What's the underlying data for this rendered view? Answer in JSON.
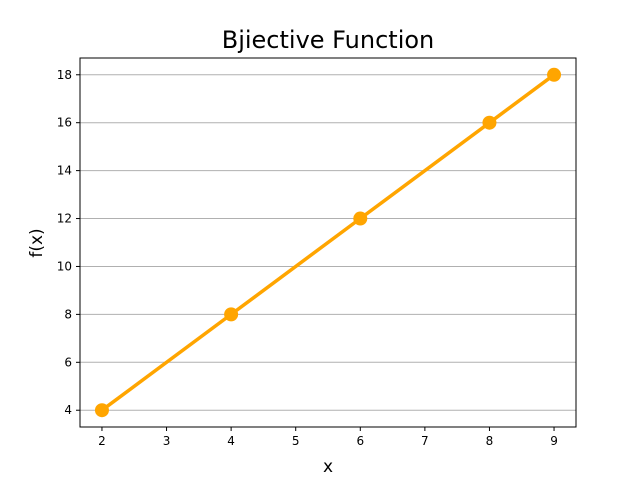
{
  "chart_data": {
    "type": "line",
    "title": "Bjiective Function",
    "xlabel": "x",
    "ylabel": "f(x)",
    "x": [
      2,
      4,
      6,
      8,
      9
    ],
    "series": [
      {
        "values": [
          4,
          8,
          12,
          16,
          18
        ],
        "color": "#FFA500",
        "marker": "circle"
      }
    ],
    "xticks": [
      2,
      3,
      4,
      5,
      6,
      7,
      8,
      9
    ],
    "yticks": [
      4,
      6,
      8,
      10,
      12,
      14,
      16,
      18
    ],
    "xlim": [
      1.66,
      9.34
    ],
    "ylim": [
      3.3,
      18.7
    ],
    "grid": "horizontal",
    "grid_color": "#b0b0b0"
  }
}
